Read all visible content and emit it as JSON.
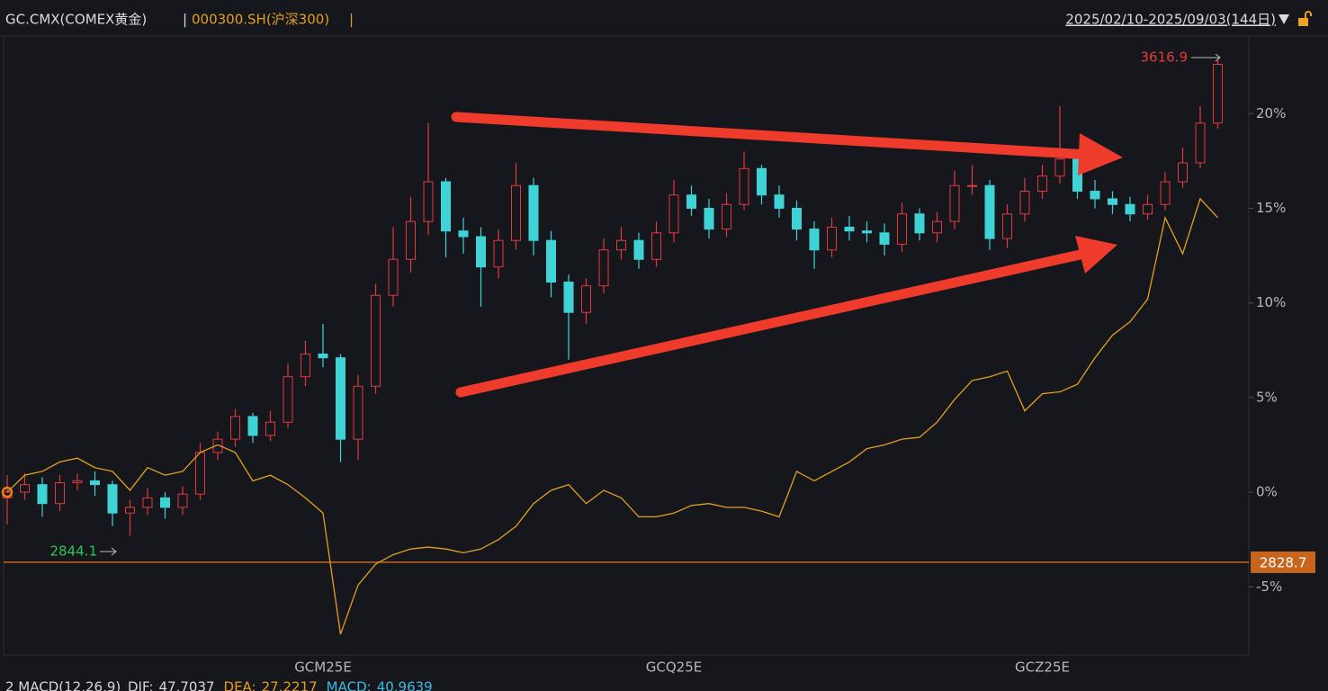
{
  "chart_data": {
    "type": "candlestick",
    "title": "GC.CMX(COMEX黄金)",
    "separator": "|",
    "date_range": "2025/02/10-2025/09/03(144日)",
    "up_color": "#e2393f",
    "down_color": "#3fd3d6",
    "categories": [
      null,
      null,
      null,
      null,
      null,
      null,
      null,
      null,
      null,
      null,
      null,
      null,
      null,
      null,
      null,
      null,
      null,
      null,
      "GCM25E",
      null,
      null,
      null,
      null,
      null,
      null,
      null,
      null,
      null,
      null,
      null,
      null,
      null,
      null,
      null,
      null,
      null,
      null,
      null,
      "GCQ25E",
      null,
      null,
      null,
      null,
      null,
      null,
      null,
      null,
      null,
      null,
      null,
      null,
      null,
      null,
      null,
      null,
      null,
      null,
      null,
      null,
      "GCZ25E",
      null,
      null,
      null,
      null,
      null,
      null,
      null,
      null,
      null,
      null
    ],
    "open": [
      -0.3,
      0,
      0.4,
      -0.6,
      0.5,
      0.6,
      0.4,
      -1.1,
      -0.8,
      -0.3,
      -0.8,
      -0.1,
      2.1,
      2.8,
      4.0,
      3.0,
      3.7,
      6.1,
      7.3,
      7.1,
      2.8,
      5.6,
      10.4,
      12.3,
      14.3,
      16.4,
      13.8,
      13.5,
      11.9,
      13.3,
      16.2,
      13.3,
      11.1,
      9.5,
      10.9,
      12.8,
      13.3,
      12.3,
      13.7,
      15.7,
      15.0,
      13.9,
      15.2,
      17.1,
      15.7,
      15.0,
      13.9,
      12.8,
      14.0,
      13.8,
      13.7,
      13.1,
      14.7,
      13.7,
      14.3,
      16.2,
      16.2,
      13.4,
      14.7,
      15.9,
      16.7,
      17.6,
      15.9,
      15.5,
      15.2,
      14.7,
      15.2,
      16.4,
      17.4,
      19.5
    ],
    "high": [
      0.9,
      1.0,
      0.8,
      0.9,
      1.0,
      1.1,
      0.6,
      -0.4,
      0.2,
      0.0,
      0.3,
      2.6,
      3.2,
      4.4,
      4.2,
      4.3,
      6.8,
      8.0,
      8.9,
      7.3,
      6.2,
      11.0,
      14.0,
      15.6,
      19.5,
      16.6,
      14.5,
      14.0,
      13.9,
      17.4,
      16.6,
      13.8,
      11.5,
      11.3,
      13.4,
      14.0,
      13.7,
      14.3,
      16.5,
      16.2,
      15.5,
      15.8,
      18.0,
      17.3,
      16.2,
      15.4,
      14.3,
      14.5,
      14.6,
      14.3,
      14.2,
      15.3,
      15.0,
      14.8,
      17.0,
      17.3,
      16.5,
      15.2,
      16.6,
      17.3,
      20.4,
      18.0,
      16.5,
      15.9,
      15.6,
      15.7,
      16.9,
      18.2,
      20.4,
      22.9
    ],
    "low": [
      -1.7,
      -0.4,
      -1.3,
      -1.0,
      0.1,
      -0.2,
      -1.8,
      -2.3,
      -1.2,
      -1.4,
      -1.2,
      -0.4,
      1.7,
      2.4,
      2.6,
      2.7,
      3.4,
      5.6,
      6.6,
      1.6,
      1.7,
      5.2,
      9.8,
      11.6,
      13.6,
      12.4,
      12.6,
      9.8,
      11.3,
      12.8,
      12.5,
      10.3,
      7.0,
      8.9,
      10.5,
      12.3,
      11.8,
      11.9,
      13.2,
      14.6,
      13.4,
      13.5,
      14.9,
      15.2,
      14.5,
      13.3,
      11.8,
      12.4,
      13.3,
      13.2,
      12.5,
      12.7,
      13.3,
      13.2,
      13.9,
      15.7,
      12.8,
      12.9,
      14.3,
      15.5,
      16.3,
      15.5,
      15.0,
      14.7,
      14.3,
      14.4,
      14.9,
      16.1,
      17.1,
      19.2
    ],
    "close": [
      0,
      0.4,
      -0.6,
      0.5,
      0.6,
      0.4,
      -1.1,
      -0.8,
      -0.3,
      -0.8,
      -0.1,
      2.1,
      2.8,
      4.0,
      3.0,
      3.7,
      6.1,
      7.3,
      7.1,
      2.8,
      5.6,
      10.4,
      12.3,
      14.3,
      16.4,
      13.8,
      13.5,
      11.9,
      13.3,
      16.2,
      13.3,
      11.1,
      9.5,
      10.9,
      12.8,
      13.3,
      12.3,
      13.7,
      15.7,
      15.0,
      13.9,
      15.2,
      17.1,
      15.7,
      15.0,
      13.9,
      12.8,
      14.0,
      13.8,
      13.7,
      13.1,
      14.7,
      13.7,
      14.3,
      16.2,
      16.2,
      13.4,
      14.7,
      15.9,
      16.7,
      17.6,
      15.9,
      15.5,
      15.2,
      14.7,
      15.2,
      16.4,
      17.4,
      19.5,
      22.6
    ],
    "series": [
      {
        "name": "000300.SH(沪深300)",
        "color": "#e3a020",
        "values": [
          0,
          0.9,
          1.1,
          1.6,
          1.8,
          1.3,
          1.1,
          0.1,
          1.3,
          0.9,
          1.1,
          2.1,
          2.5,
          2.1,
          0.6,
          0.9,
          0.4,
          -0.3,
          -1.1,
          -7.5,
          -4.9,
          -3.8,
          -3.3,
          -3.0,
          -2.9,
          -3.0,
          -3.2,
          -3.0,
          -2.5,
          -1.8,
          -0.6,
          0.1,
          0.4,
          -0.6,
          0.1,
          -0.3,
          -1.3,
          -1.3,
          -1.1,
          -0.7,
          -0.6,
          -0.8,
          -0.8,
          -1.0,
          -1.3,
          1.1,
          0.6,
          1.1,
          1.6,
          2.3,
          2.5,
          2.8,
          2.9,
          3.7,
          4.9,
          5.9,
          6.1,
          6.4,
          4.3,
          5.2,
          5.3,
          5.7,
          7.1,
          8.3,
          9.0,
          10.2,
          14.5,
          12.6,
          15.5,
          14.5
        ]
      }
    ],
    "ylim": [
      -8.6,
      24.1
    ],
    "yticks": [
      {
        "value": -5,
        "label": "-5%"
      },
      {
        "value": 0,
        "label": "0%"
      },
      {
        "value": 5,
        "label": "5%"
      },
      {
        "value": 10,
        "label": "10%"
      },
      {
        "value": 15,
        "label": "15%"
      },
      {
        "value": 20,
        "label": "20%"
      }
    ],
    "grid": false,
    "high_label": "3616.9",
    "low_label": "2844.1",
    "reference_line": {
      "value": -3.7,
      "label": "2828.7",
      "color": "#c8651d"
    },
    "indicator": {
      "label": "2 MACD(12,26,9)",
      "items": [
        {
          "name": "DIF:",
          "value": 47.7037,
          "color": "#d8d8d8"
        },
        {
          "name": "DEA:",
          "value": 27.2217,
          "color": "#e3a020"
        },
        {
          "name": "MACD:",
          "value": 40.9639,
          "color": "#3fb8e0"
        }
      ]
    }
  }
}
